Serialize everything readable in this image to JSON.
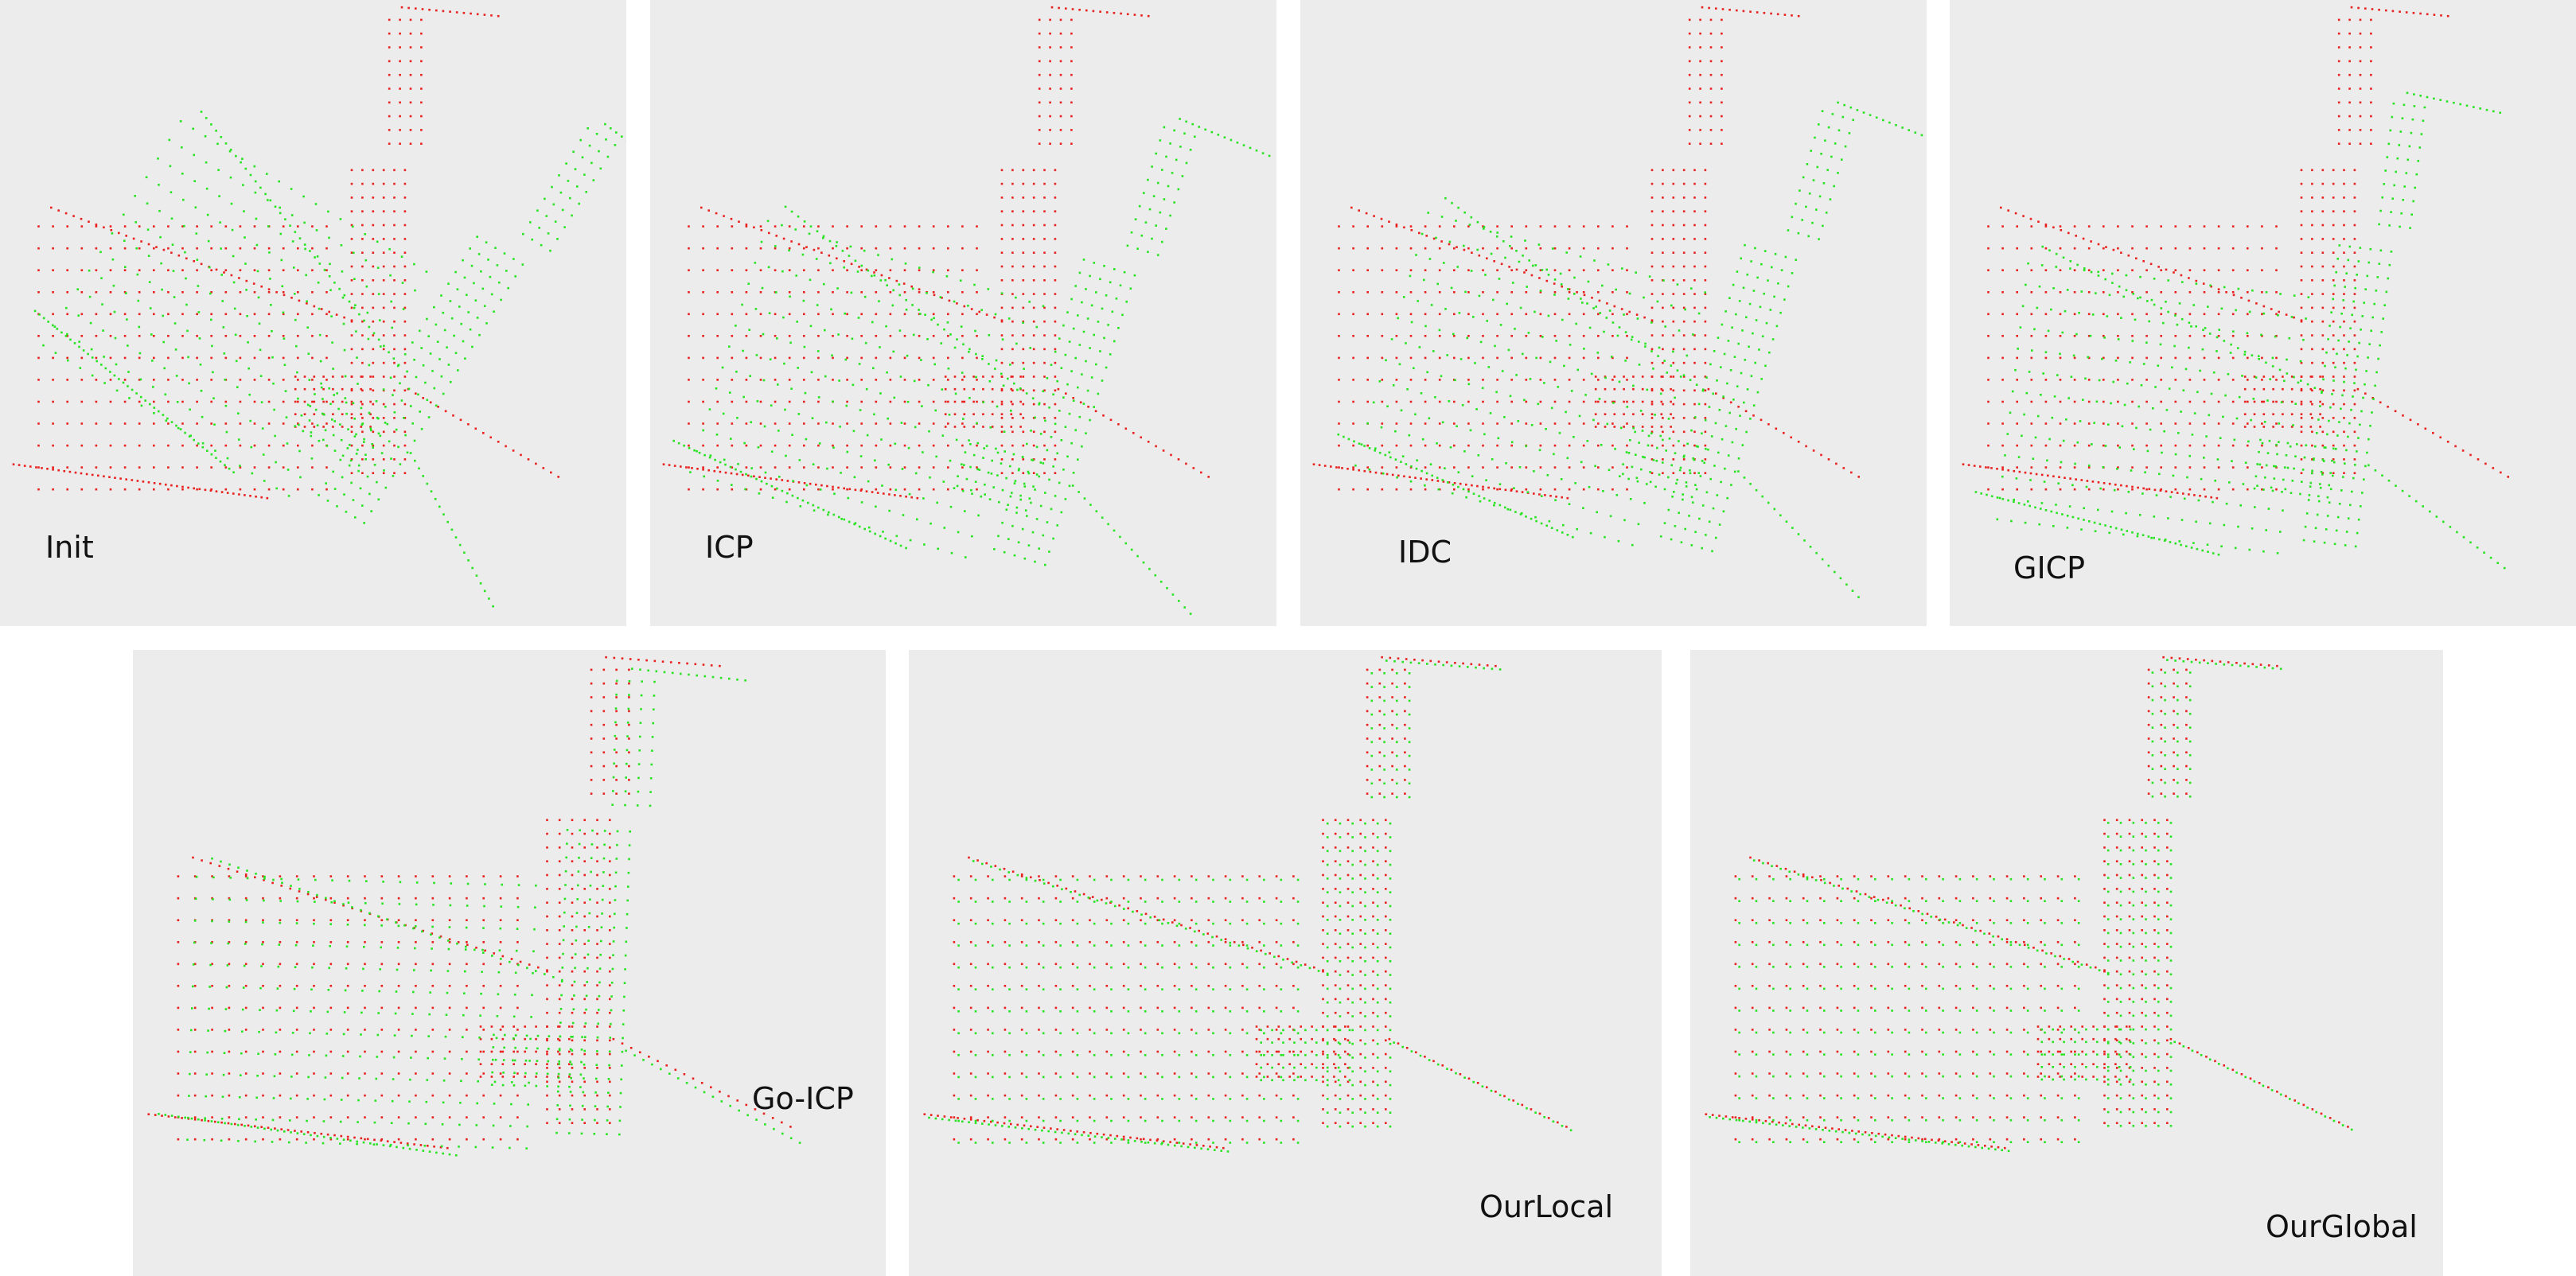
{
  "colors": {
    "target": "#e8211e",
    "source": "#27e321",
    "panel_background": "#ececec"
  },
  "panels": [
    {
      "id": "init",
      "label": "Init",
      "alignment": "unaligned"
    },
    {
      "id": "icp",
      "label": "ICP",
      "alignment": "partial"
    },
    {
      "id": "idc",
      "label": "IDC",
      "alignment": "partial"
    },
    {
      "id": "gicp",
      "label": "GICP",
      "alignment": "partial"
    },
    {
      "id": "goicp",
      "label": "Go-ICP",
      "alignment": "near"
    },
    {
      "id": "ourlocal",
      "label": "OurLocal",
      "alignment": "aligned"
    },
    {
      "id": "ourglobal",
      "label": "OurGlobal",
      "alignment": "aligned"
    }
  ]
}
